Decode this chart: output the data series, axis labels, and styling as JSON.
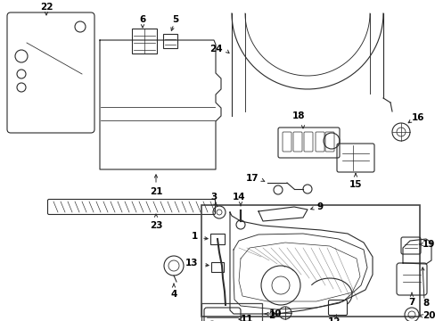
{
  "bg_color": "#ffffff",
  "line_color": "#2a2a2a",
  "lw": 0.8,
  "figsize": [
    4.89,
    3.6
  ],
  "dpi": 100
}
